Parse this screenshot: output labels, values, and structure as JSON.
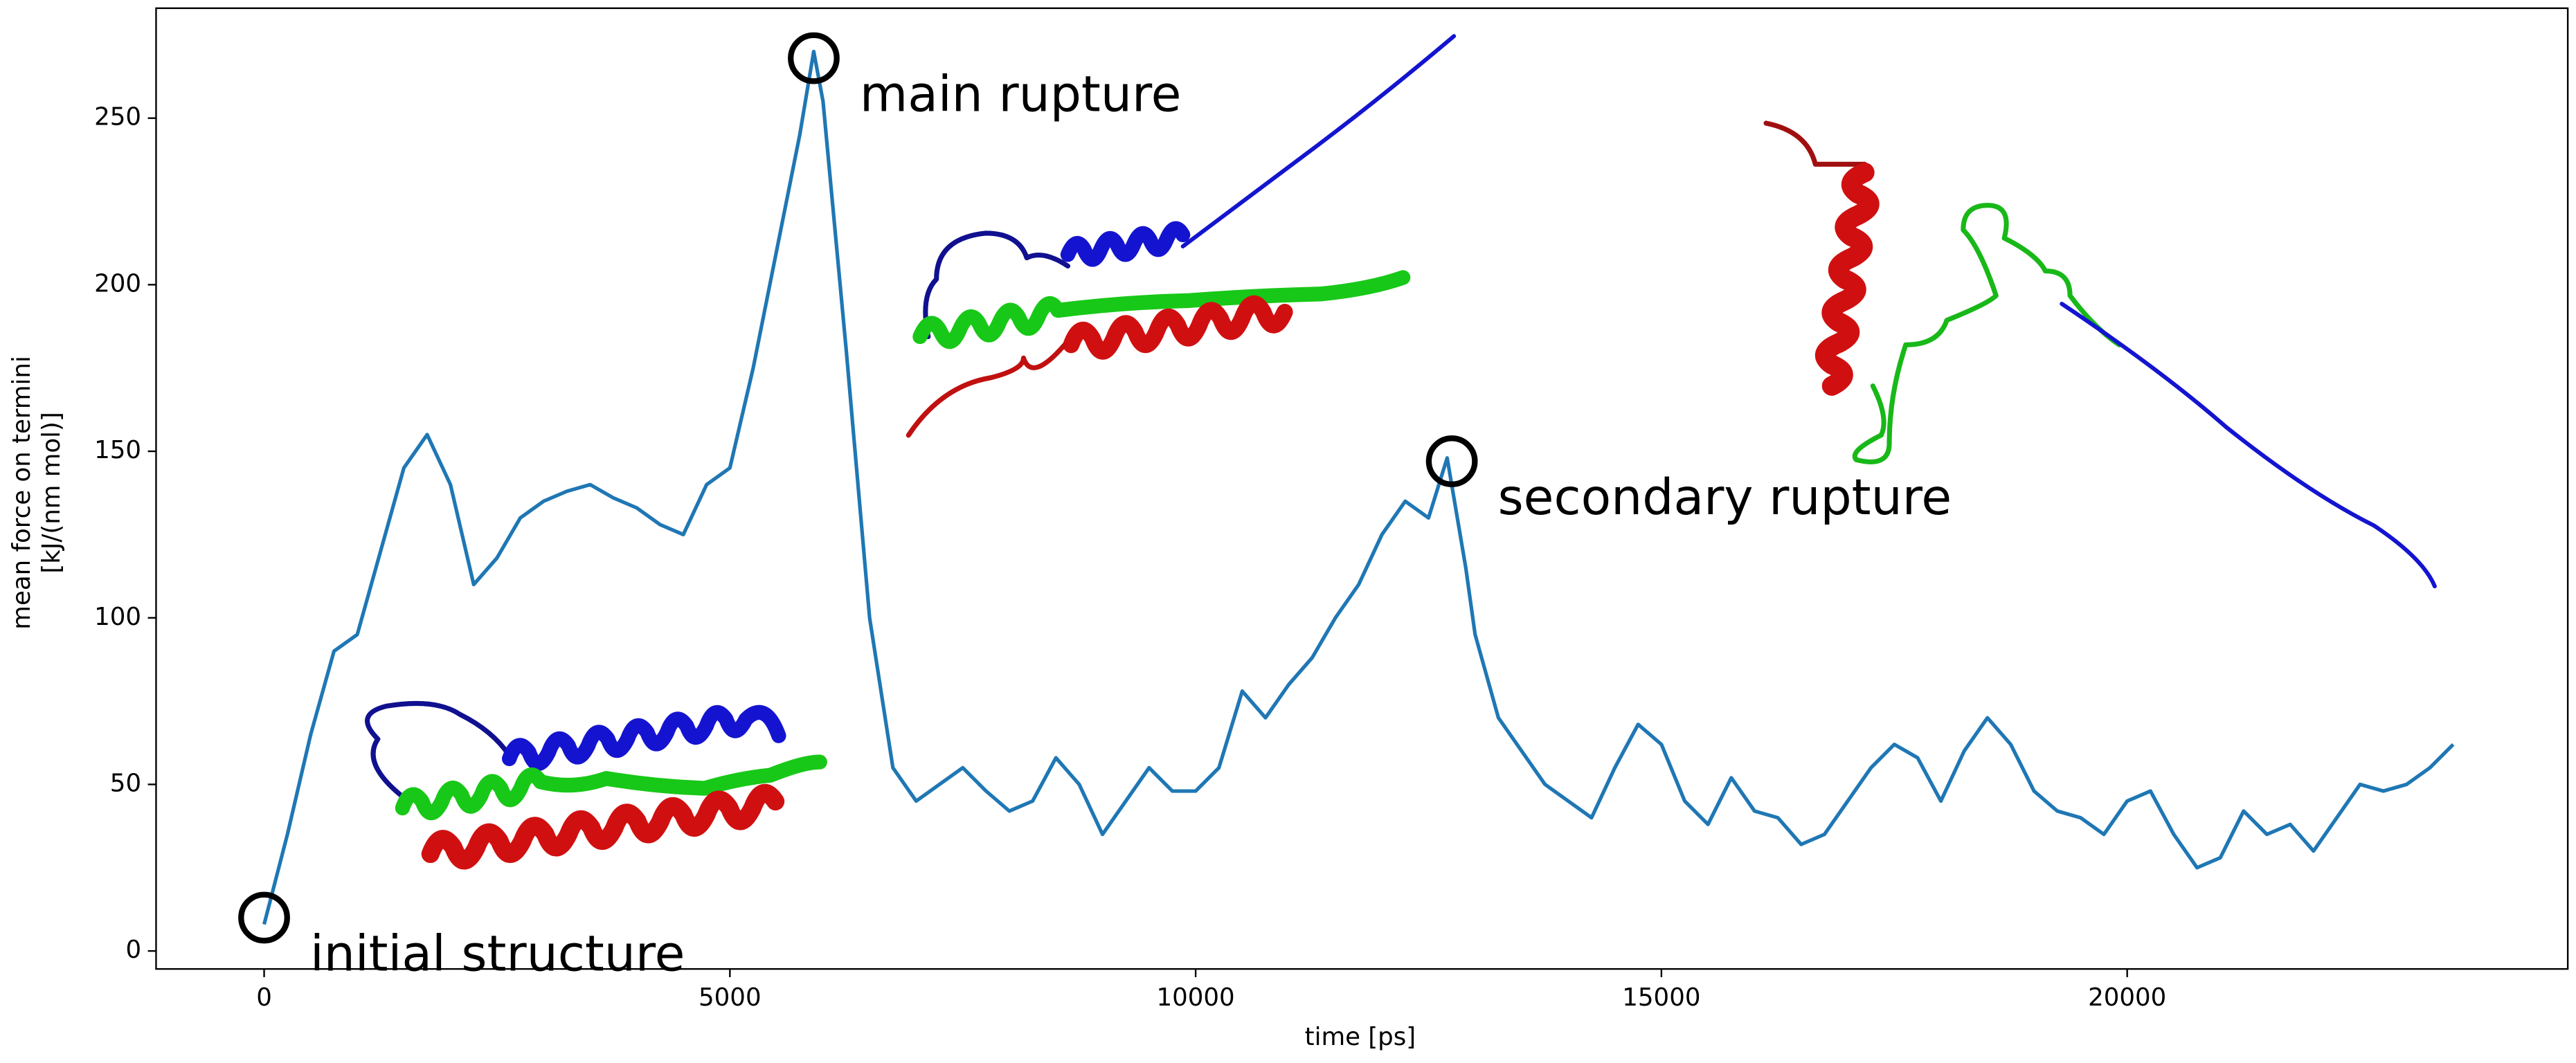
{
  "chart_data": {
    "type": "line",
    "xlabel": "time [ps]",
    "ylabel": [
      "mean force on termini",
      "[kJ/(nm mol)]"
    ],
    "xlim": [
      -1160,
      24730
    ],
    "ylim": [
      -5.4,
      283
    ],
    "xticks": [
      0,
      5000,
      10000,
      15000,
      20000
    ],
    "yticks": [
      0,
      50,
      100,
      150,
      200,
      250
    ],
    "grid": false,
    "series": [
      {
        "name": "mean force",
        "color": "#1f77b4",
        "x": [
          0,
          250,
          500,
          750,
          1000,
          1250,
          1500,
          1750,
          2000,
          2250,
          2500,
          2750,
          3000,
          3250,
          3500,
          3750,
          4000,
          4250,
          4500,
          4750,
          5000,
          5250,
          5500,
          5750,
          5900,
          6000,
          6250,
          6500,
          6750,
          7000,
          7250,
          7500,
          7750,
          8000,
          8250,
          8500,
          8750,
          9000,
          9250,
          9500,
          9750,
          10000,
          10250,
          10500,
          10750,
          11000,
          11250,
          11500,
          11750,
          12000,
          12250,
          12500,
          12700,
          12900,
          13000,
          13250,
          13500,
          13750,
          14000,
          14250,
          14500,
          14750,
          15000,
          15250,
          15500,
          15750,
          16000,
          16250,
          16500,
          16750,
          17000,
          17250,
          17500,
          17750,
          18000,
          18250,
          18500,
          18750,
          19000,
          19250,
          19500,
          19750,
          20000,
          20250,
          20500,
          20750,
          21000,
          21250,
          21500,
          21750,
          22000,
          22250,
          22500,
          22750,
          23000,
          23250,
          23500
        ],
        "values": [
          8,
          35,
          65,
          90,
          95,
          120,
          145,
          155,
          140,
          110,
          118,
          130,
          135,
          138,
          140,
          136,
          133,
          128,
          125,
          140,
          145,
          175,
          210,
          245,
          270,
          255,
          180,
          100,
          55,
          45,
          50,
          55,
          48,
          42,
          45,
          58,
          50,
          35,
          45,
          55,
          48,
          48,
          55,
          78,
          70,
          80,
          88,
          100,
          110,
          125,
          135,
          130,
          148,
          115,
          95,
          70,
          60,
          50,
          45,
          40,
          55,
          68,
          62,
          45,
          38,
          52,
          42,
          40,
          32,
          35,
          45,
          55,
          62,
          58,
          45,
          60,
          70,
          62,
          48,
          42,
          40,
          35,
          45,
          48,
          35,
          25,
          28,
          42,
          35,
          38,
          30,
          40,
          50,
          48,
          50,
          55,
          62
        ]
      }
    ],
    "annotations": [
      {
        "text": "initial structure",
        "x": 0,
        "y": 10
      },
      {
        "text": "main rupture",
        "x": 5900,
        "y": 268
      },
      {
        "text": "secondary rupture",
        "x": 12750,
        "y": 147
      }
    ]
  }
}
